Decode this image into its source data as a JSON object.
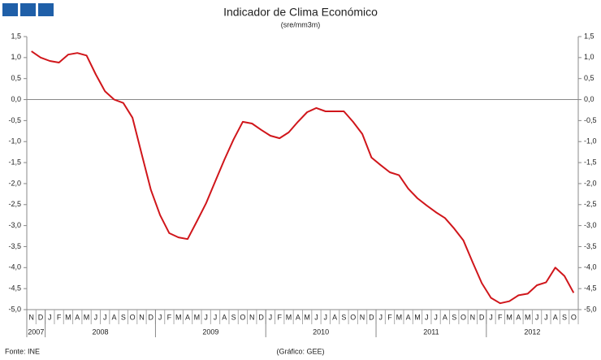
{
  "chart_data": {
    "type": "line",
    "title": "Indicador de Clima Económico",
    "subtitle": "(sre/mm3m)",
    "source": "Fonte: INE",
    "credit": "(Gráfico: GEE)",
    "categories": [
      "N",
      "D",
      "J",
      "F",
      "M",
      "A",
      "M",
      "J",
      "J",
      "A",
      "S",
      "O",
      "N",
      "D",
      "J",
      "F",
      "M",
      "A",
      "M",
      "J",
      "J",
      "A",
      "S",
      "O",
      "N",
      "D",
      "J",
      "F",
      "M",
      "A",
      "M",
      "J",
      "J",
      "A",
      "S",
      "O",
      "N",
      "D",
      "J",
      "F",
      "M",
      "A",
      "M",
      "J",
      "J",
      "A",
      "S",
      "O",
      "N",
      "D",
      "J",
      "F",
      "M",
      "A",
      "M",
      "J",
      "J",
      "A",
      "S",
      "O"
    ],
    "years": [
      "2007",
      "2008",
      "2009",
      "2010",
      "2011",
      "2012"
    ],
    "series": [
      {
        "color": "#d0161b",
        "values": [
          1.15,
          1.0,
          0.92,
          0.88,
          1.07,
          1.11,
          1.05,
          0.6,
          0.2,
          0.0,
          -0.08,
          -0.43,
          -1.3,
          -2.15,
          -2.75,
          -3.18,
          -3.28,
          -3.32,
          -2.9,
          -2.47,
          -1.95,
          -1.43,
          -0.95,
          -0.53,
          -0.57,
          -0.72,
          -0.86,
          -0.92,
          -0.78,
          -0.53,
          -0.3,
          -0.2,
          -0.28,
          -0.28,
          -0.28,
          -0.53,
          -0.82,
          -1.38,
          -1.56,
          -1.73,
          -1.8,
          -2.12,
          -2.35,
          -2.52,
          -2.68,
          -2.82,
          -3.07,
          -3.35,
          -3.87,
          -4.37,
          -4.72,
          -4.85,
          -4.8,
          -4.66,
          -4.62,
          -4.42,
          -4.35,
          -4.0,
          -4.2,
          -4.6
        ]
      }
    ],
    "ylim": [
      -5,
      1.5
    ],
    "yticks": [
      {
        "value": 1.5,
        "label": "1,5"
      },
      {
        "value": 1,
        "label": "1,0"
      },
      {
        "value": 0.5,
        "label": "0,5"
      },
      {
        "value": 0,
        "label": "0,0"
      },
      {
        "value": -0.5,
        "label": "-0,5"
      },
      {
        "value": -1,
        "label": "-1,0"
      },
      {
        "value": -1.5,
        "label": "-1,5"
      },
      {
        "value": -2,
        "label": "-2,0"
      },
      {
        "value": -2.5,
        "label": "-2,5"
      },
      {
        "value": -3,
        "label": "-3,0"
      },
      {
        "value": -3.5,
        "label": "-3,5"
      },
      {
        "value": -4,
        "label": "-4,0"
      },
      {
        "value": -4.5,
        "label": "-4,5"
      },
      {
        "value": -5,
        "label": "-5,0"
      }
    ]
  }
}
